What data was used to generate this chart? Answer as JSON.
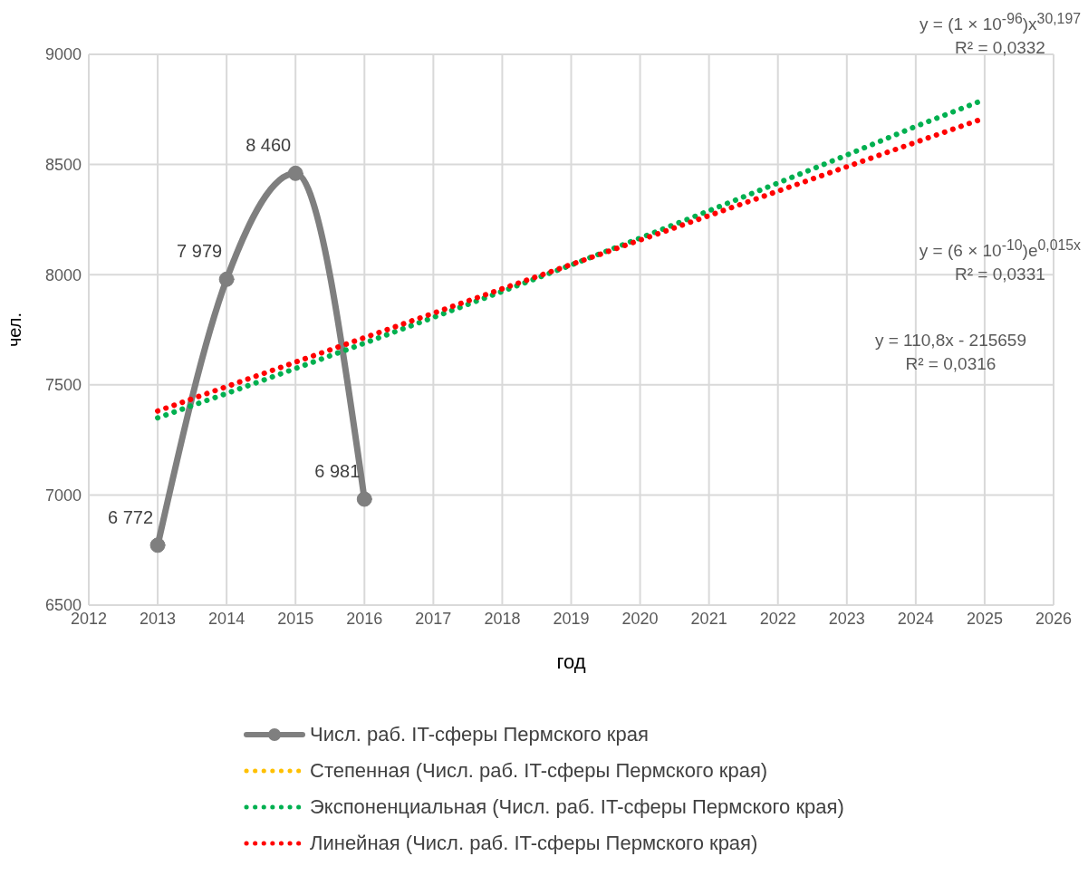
{
  "chart_data": {
    "type": "line",
    "xlabel": "год",
    "ylabel": "чел.",
    "xlim": [
      2012,
      2026
    ],
    "xticks": [
      2012,
      2013,
      2014,
      2015,
      2016,
      2017,
      2018,
      2019,
      2020,
      2021,
      2022,
      2023,
      2024,
      2025,
      2026
    ],
    "ylim": [
      6500,
      9000
    ],
    "yticks": [
      6500,
      7000,
      7500,
      8000,
      8500,
      9000
    ],
    "grid": true,
    "legend": "bottom",
    "series": [
      {
        "name": "Числ. раб. IT-сферы Пермского края",
        "color": "#7f7f7f",
        "x": [
          2013,
          2014,
          2015,
          2016
        ],
        "values": [
          6772,
          7979,
          8460,
          6981
        ],
        "value_labels": [
          "6 772",
          "7 979",
          "8 460",
          "6 981"
        ],
        "marker": "circle",
        "line_style": "solid"
      },
      {
        "name": "Степенная (Числ. раб. IT-сферы Пермского края)",
        "color": "#ffc000",
        "marker": "none",
        "line_style": "dotted"
      },
      {
        "name": "Экспоненциальная (Числ. раб. IT-сферы Пермского края)",
        "color": "#00b050",
        "x": [
          2013,
          2014,
          2015,
          2016,
          2017,
          2018,
          2019,
          2020,
          2021,
          2022,
          2023,
          2024,
          2025
        ],
        "values": [
          7350,
          7461,
          7574,
          7689,
          7806,
          7924,
          8044,
          8166,
          8290,
          8416,
          8543,
          8673,
          8795
        ],
        "marker": "none",
        "line_style": "dotted"
      },
      {
        "name": "Линейная (Числ. раб. IT-сферы Пермского края)",
        "color": "#ff0000",
        "x": [
          2013,
          2014,
          2015,
          2016,
          2017,
          2018,
          2019,
          2020,
          2021,
          2022,
          2023,
          2024,
          2025
        ],
        "values": [
          7381,
          7492,
          7603,
          7714,
          7825,
          7936,
          8046,
          8157,
          8268,
          8379,
          8490,
          8601,
          8711
        ],
        "marker": "none",
        "line_style": "dotted"
      }
    ],
    "annotations": [
      "y = (1 × 10$^{-96}$)x$^{30,197}$\nR² = 0,0332",
      "y = (6 × 10$^{-10}$)e$^{0,015x}$\nR² = 0,0331",
      "y = 110,8x - 215659\nR² = 0,0316"
    ]
  }
}
